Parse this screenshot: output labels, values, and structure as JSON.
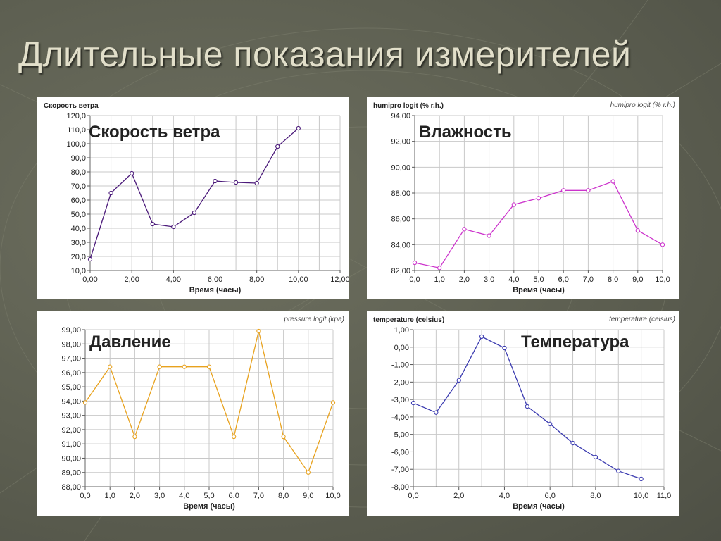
{
  "slide": {
    "title": "Длительные показания измерителей"
  },
  "chart_data": [
    {
      "id": "wind",
      "type": "line",
      "title": "Скорость ветра",
      "overlay_label": "Скорость ветра",
      "series_label_right": "",
      "xlabel": "Время (часы)",
      "ylabel": "",
      "xlim": [
        0,
        12
      ],
      "ylim": [
        10,
        120
      ],
      "x_ticks": [
        "0,00",
        "2,00",
        "4,00",
        "6,00",
        "8,00",
        "10,00",
        "12,00"
      ],
      "x_tick_values": [
        0,
        2,
        4,
        6,
        8,
        10,
        12
      ],
      "y_ticks": [
        "10,0",
        "20,0",
        "30,0",
        "40,0",
        "50,0",
        "60,0",
        "70,0",
        "80,0",
        "90,0",
        "100,0",
        "110,0",
        "120,0"
      ],
      "y_tick_values": [
        10,
        20,
        30,
        40,
        50,
        60,
        70,
        80,
        90,
        100,
        110,
        120
      ],
      "x_minor_grid": true,
      "color": "#4b1a7a",
      "grid": true,
      "x": [
        0,
        1,
        2,
        3,
        4,
        5,
        6,
        7,
        8,
        9,
        10
      ],
      "y": [
        18,
        65,
        79,
        43,
        41,
        51,
        73.5,
        72.5,
        72,
        98,
        111
      ]
    },
    {
      "id": "humidity",
      "type": "line",
      "title": "humipro logit (% r.h.)",
      "overlay_label": "Влажность",
      "series_label_right": "humipro logit (% r.h.)",
      "xlabel": "Время (часы)",
      "ylabel": "",
      "xlim": [
        0,
        10
      ],
      "ylim": [
        82,
        94
      ],
      "x_ticks": [
        "0,0",
        "1,0",
        "2,0",
        "3,0",
        "4,0",
        "5,0",
        "6,0",
        "7,0",
        "8,0",
        "9,0",
        "10,0"
      ],
      "x_tick_values": [
        0,
        1,
        2,
        3,
        4,
        5,
        6,
        7,
        8,
        9,
        10
      ],
      "y_ticks": [
        "82,00",
        "84,00",
        "86,00",
        "88,00",
        "90,00",
        "92,00",
        "94,00"
      ],
      "y_tick_values": [
        82,
        84,
        86,
        88,
        90,
        92,
        94
      ],
      "x_minor_grid": false,
      "color": "#cc33cc",
      "grid": true,
      "x": [
        0,
        1,
        2,
        3,
        4,
        5,
        6,
        7,
        8,
        9,
        10
      ],
      "y": [
        82.6,
        82.2,
        85.2,
        84.7,
        87.1,
        87.6,
        88.2,
        88.2,
        88.9,
        85.1,
        84.0
      ]
    },
    {
      "id": "pressure",
      "type": "line",
      "title": "",
      "overlay_label": "Давление",
      "series_label_right": "pressure logit (kpa)",
      "xlabel": "Время (часы)",
      "ylabel": "",
      "xlim": [
        0,
        10
      ],
      "ylim": [
        88,
        99
      ],
      "x_ticks": [
        "0,0",
        "1,0",
        "2,0",
        "3,0",
        "4,0",
        "5,0",
        "6,0",
        "7,0",
        "8,0",
        "9,0",
        "10,0"
      ],
      "x_tick_values": [
        0,
        1,
        2,
        3,
        4,
        5,
        6,
        7,
        8,
        9,
        10
      ],
      "y_ticks": [
        "88,00",
        "89,00",
        "90,00",
        "91,00",
        "92,00",
        "93,00",
        "94,00",
        "95,00",
        "96,00",
        "97,00",
        "98,00",
        "99,00"
      ],
      "y_tick_values": [
        88,
        89,
        90,
        91,
        92,
        93,
        94,
        95,
        96,
        97,
        98,
        99
      ],
      "x_minor_grid": false,
      "color": "#e8a21e",
      "grid": true,
      "x": [
        0,
        1,
        2,
        3,
        4,
        5,
        6,
        7,
        8,
        9,
        10
      ],
      "y": [
        93.9,
        96.4,
        91.5,
        96.4,
        96.4,
        96.4,
        91.5,
        98.9,
        91.5,
        89.0,
        93.9
      ]
    },
    {
      "id": "temperature",
      "type": "line",
      "title": "temperature (celsius)",
      "overlay_label": "Температура",
      "series_label_right": "temperature (celsius)",
      "xlabel": "Время (часы)",
      "ylabel": "",
      "xlim": [
        0,
        11
      ],
      "ylim": [
        -8,
        1
      ],
      "x_ticks": [
        "0,0",
        "2,0",
        "4,0",
        "6,0",
        "8,0",
        "10,0",
        "11,0"
      ],
      "x_tick_values": [
        0,
        2,
        4,
        6,
        8,
        10,
        11
      ],
      "y_ticks": [
        "-8,00",
        "-7,00",
        "-6,00",
        "-5,00",
        "-4,00",
        "-3,00",
        "-2,00",
        "-1,00",
        "0,00",
        "1,00"
      ],
      "y_tick_values": [
        -8,
        -7,
        -6,
        -5,
        -4,
        -3,
        -2,
        -1,
        0,
        1
      ],
      "x_minor_grid": true,
      "color": "#3b3bb0",
      "grid": true,
      "x": [
        0,
        1,
        2,
        3,
        4,
        5,
        6,
        7,
        8,
        9,
        10
      ],
      "y": [
        -3.2,
        -3.75,
        -1.9,
        0.6,
        -0.05,
        -3.4,
        -4.4,
        -5.5,
        -6.3,
        -7.1,
        -7.55
      ]
    }
  ],
  "colors": {
    "background": "#5d5f51",
    "title": "#e2dfca",
    "panel": "#ffffff",
    "grid": "#c8c8c8"
  }
}
